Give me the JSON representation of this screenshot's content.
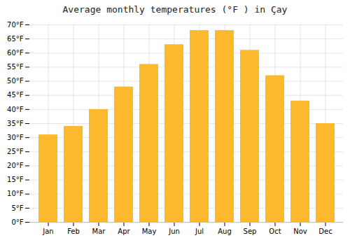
{
  "chart_data": {
    "type": "bar",
    "title": "Average monthly temperatures (°F ) in Çay",
    "categories": [
      "Jan",
      "Feb",
      "Mar",
      "Apr",
      "May",
      "Jun",
      "Jul",
      "Aug",
      "Sep",
      "Oct",
      "Nov",
      "Dec"
    ],
    "values": [
      31,
      34,
      40,
      48,
      56,
      63,
      68,
      68,
      61,
      52,
      43,
      35
    ],
    "color": "#FDB92E",
    "ylim": [
      0,
      70
    ],
    "yticks": [
      {
        "value": 0,
        "label": "0°F"
      },
      {
        "value": 5,
        "label": "5°F"
      },
      {
        "value": 10,
        "label": "10°F"
      },
      {
        "value": 15,
        "label": "15°F"
      },
      {
        "value": 20,
        "label": "20°F"
      },
      {
        "value": 25,
        "label": "25°F"
      },
      {
        "value": 30,
        "label": "30°F"
      },
      {
        "value": 35,
        "label": "35°F"
      },
      {
        "value": 40,
        "label": "40°F"
      },
      {
        "value": 45,
        "label": "45°F"
      },
      {
        "value": 50,
        "label": "50°F"
      },
      {
        "value": 55,
        "label": "55°F"
      },
      {
        "value": 60,
        "label": "60°F"
      },
      {
        "value": 65,
        "label": "65°F"
      },
      {
        "value": 70,
        "label": "70°F"
      }
    ],
    "grid": true
  }
}
